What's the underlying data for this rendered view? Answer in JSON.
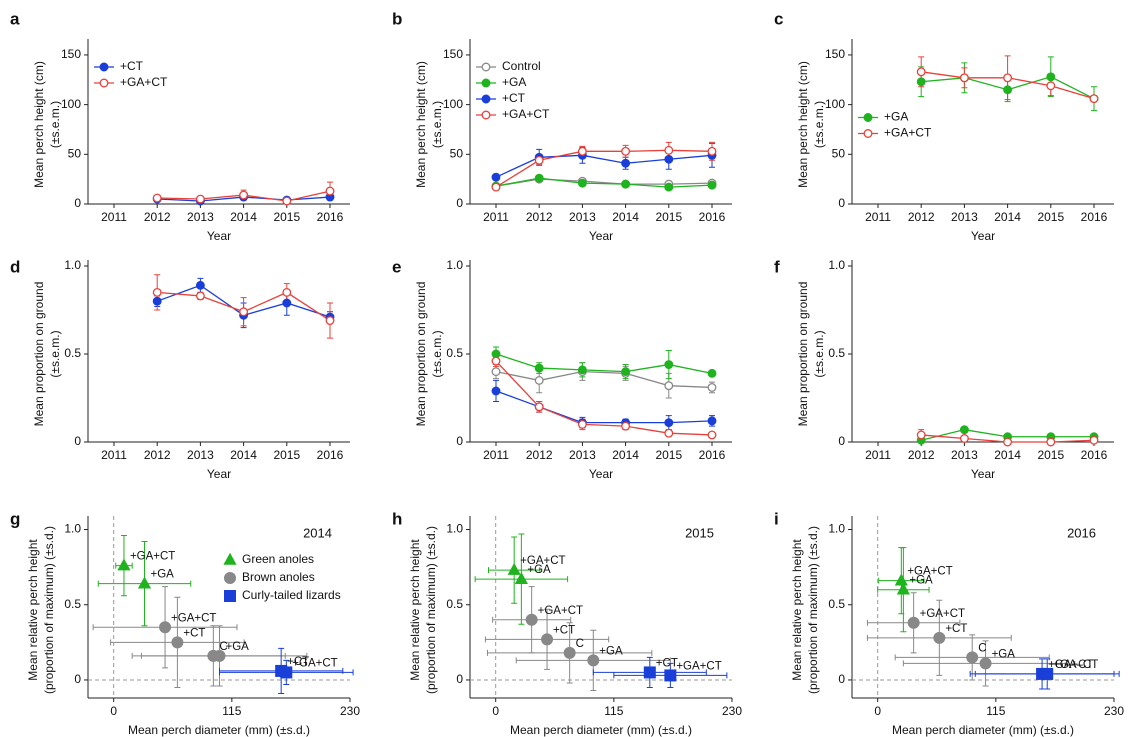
{
  "chart_data": [
    {
      "type": "line",
      "panel": "a",
      "xlabel": "Year",
      "ylabel": [
        "Mean perch height (cm)",
        "(±s.e.m.)"
      ],
      "categories": [
        "2011",
        "2012",
        "2013",
        "2014",
        "2015",
        "2016"
      ],
      "ylim": [
        0,
        160
      ],
      "yticks": [
        0,
        50,
        100,
        150
      ],
      "legend": "upper left",
      "series": [
        {
          "name": "+CT",
          "color": "#1a3fd8",
          "marker": "filled",
          "values": [
            null,
            5,
            3,
            7,
            4,
            7
          ],
          "errors": [
            null,
            2,
            1,
            2,
            1,
            2
          ]
        },
        {
          "name": "+GA+CT",
          "color": "#e8403a",
          "marker": "open",
          "values": [
            null,
            6,
            5,
            9,
            3,
            13
          ],
          "errors": [
            null,
            1,
            2,
            5,
            2,
            9
          ]
        }
      ]
    },
    {
      "type": "line",
      "panel": "b",
      "xlabel": "Year",
      "ylabel": [
        "Mean perch height (cm)",
        "(±s.e.m.)"
      ],
      "categories": [
        "2011",
        "2012",
        "2013",
        "2014",
        "2015",
        "2016"
      ],
      "ylim": [
        0,
        160
      ],
      "yticks": [
        0,
        50,
        100,
        150
      ],
      "legend": "upper left",
      "series": [
        {
          "name": "Control",
          "color": "#888888",
          "marker": "open",
          "values": [
            18,
            25,
            23,
            20,
            20,
            21
          ],
          "errors": [
            2,
            2,
            2,
            2,
            3,
            2
          ]
        },
        {
          "name": "+GA",
          "color": "#1fb31f",
          "marker": "filled",
          "values": [
            18,
            26,
            21,
            20,
            17,
            19
          ],
          "errors": [
            2,
            2,
            2,
            2,
            2,
            2
          ]
        },
        {
          "name": "+CT",
          "color": "#1a3fd8",
          "marker": "filled",
          "values": [
            27,
            47,
            49,
            41,
            45,
            49
          ],
          "errors": [
            3,
            8,
            8,
            6,
            10,
            12
          ]
        },
        {
          "name": "+GA+CT",
          "color": "#e8403a",
          "marker": "open",
          "values": [
            17,
            44,
            53,
            53,
            54,
            53
          ],
          "errors": [
            2,
            4,
            5,
            6,
            8,
            9
          ]
        }
      ]
    },
    {
      "type": "line",
      "panel": "c",
      "xlabel": "Year",
      "ylabel": [
        "Mean perch height (cm)",
        "(±s.e.m.)"
      ],
      "categories": [
        "2011",
        "2012",
        "2013",
        "2014",
        "2015",
        "2016"
      ],
      "ylim": [
        0,
        160
      ],
      "yticks": [
        0,
        50,
        100,
        150
      ],
      "legend": "center left",
      "series": [
        {
          "name": "+GA",
          "color": "#1fb31f",
          "marker": "filled",
          "values": [
            null,
            123,
            127,
            115,
            128,
            106
          ],
          "errors": [
            null,
            15,
            15,
            12,
            20,
            12
          ]
        },
        {
          "name": "+GA+CT",
          "color": "#e8403a",
          "marker": "open",
          "values": [
            null,
            133,
            127,
            127,
            119,
            106
          ],
          "errors": [
            null,
            15,
            10,
            22,
            10,
            3
          ]
        }
      ]
    },
    {
      "type": "line",
      "panel": "d",
      "xlabel": "Year",
      "ylabel": [
        "Mean proportion on ground",
        "(±s.e.m.)"
      ],
      "categories": [
        "2011",
        "2012",
        "2013",
        "2014",
        "2015",
        "2016"
      ],
      "ylim": [
        0,
        1
      ],
      "yticks": [
        0,
        0.5,
        {
          "value": 1,
          "label": "1.0"
        }
      ],
      "series": [
        {
          "name": "+CT",
          "color": "#1a3fd8",
          "marker": "filled",
          "values": [
            null,
            0.8,
            0.89,
            0.72,
            0.79,
            0.71
          ],
          "errors": [
            null,
            0.03,
            0.04,
            0.07,
            0.07,
            0.03
          ]
        },
        {
          "name": "+GA+CT",
          "color": "#e8403a",
          "marker": "open",
          "values": [
            null,
            0.85,
            0.83,
            0.74,
            0.85,
            0.69
          ],
          "errors": [
            null,
            0.1,
            0.02,
            0.08,
            0.05,
            0.1
          ]
        }
      ]
    },
    {
      "type": "line",
      "panel": "e",
      "xlabel": "Year",
      "ylabel": [
        "Mean proportion on ground",
        "(±s.e.m.)"
      ],
      "categories": [
        "2011",
        "2012",
        "2013",
        "2014",
        "2015",
        "2016"
      ],
      "ylim": [
        0,
        1
      ],
      "yticks": [
        0,
        0.5,
        {
          "value": 1,
          "label": "1.0"
        }
      ],
      "series": [
        {
          "name": "Control",
          "color": "#888888",
          "marker": "open",
          "values": [
            0.4,
            0.35,
            0.4,
            0.39,
            0.32,
            0.31
          ],
          "errors": [
            0.04,
            0.07,
            0.05,
            0.04,
            0.07,
            0.03
          ]
        },
        {
          "name": "+GA",
          "color": "#1fb31f",
          "marker": "filled",
          "values": [
            0.5,
            0.42,
            0.41,
            0.4,
            0.44,
            0.39
          ],
          "errors": [
            0.04,
            0.03,
            0.04,
            0.04,
            0.08,
            0.01
          ]
        },
        {
          "name": "+CT",
          "color": "#1a3fd8",
          "marker": "filled",
          "values": [
            0.29,
            0.2,
            0.11,
            0.11,
            0.11,
            0.12
          ],
          "errors": [
            0.06,
            0.03,
            0.03,
            0.02,
            0.04,
            0.03
          ]
        },
        {
          "name": "+GA+CT",
          "color": "#e8403a",
          "marker": "open",
          "values": [
            0.46,
            0.2,
            0.1,
            0.09,
            0.05,
            0.04
          ],
          "errors": [
            0.03,
            0.03,
            0.03,
            0.02,
            0.01,
            0.01
          ]
        }
      ]
    },
    {
      "type": "line",
      "panel": "f",
      "xlabel": "Year",
      "ylabel": [
        "Mean proportion on ground",
        "(±s.e.m.)"
      ],
      "categories": [
        "2011",
        "2012",
        "2013",
        "2014",
        "2015",
        "2016"
      ],
      "ylim": [
        0,
        1
      ],
      "yticks": [
        0,
        0.5,
        {
          "value": 1,
          "label": "1.0"
        }
      ],
      "series": [
        {
          "name": "+GA",
          "color": "#1fb31f",
          "marker": "filled",
          "values": [
            null,
            0.01,
            0.07,
            0.03,
            0.03,
            0.03
          ],
          "errors": [
            null,
            0.01,
            0.01,
            0.01,
            0.01,
            0.01
          ]
        },
        {
          "name": "+GA+CT",
          "color": "#e8403a",
          "marker": "open",
          "values": [
            null,
            0.04,
            0.02,
            0,
            0,
            0.01
          ],
          "errors": [
            null,
            0.03,
            0.01,
            0.01,
            0.01,
            0.01
          ]
        }
      ]
    },
    {
      "type": "scatter",
      "panel": "g",
      "annotation": "2014",
      "xlabel": "Mean perch diameter (mm) (±s.d.)",
      "ylabel": [
        "Mean relative perch height",
        "(proportion of maximum) (±s.d.)"
      ],
      "xlim": [
        -25,
        230
      ],
      "xticks": [
        0,
        115,
        230
      ],
      "ylim": [
        -0.12,
        1.05
      ],
      "yticks": [
        0,
        0.5,
        {
          "value": 1,
          "label": "1.0"
        }
      ],
      "legend": "upper right",
      "series": [
        {
          "name": "Green anoles",
          "color": "#1fb31f",
          "marker": "triangle",
          "points": [
            {
              "label": "+GA+CT",
              "label_color": "#e8403a",
              "x": 10,
              "y": 0.76,
              "xerr": 8,
              "yerr": 0.2
            },
            {
              "label": "+GA",
              "label_color": "#1fb31f",
              "x": 30,
              "y": 0.64,
              "xerr": 45,
              "yerr": 0.28
            }
          ]
        },
        {
          "name": "Brown anoles",
          "color": "#888888",
          "marker": "circle",
          "points": [
            {
              "label": "+GA+CT",
              "label_color": "#e8403a",
              "x": 50,
              "y": 0.35,
              "xerr": 70,
              "yerr": 0.27
            },
            {
              "label": "+CT",
              "label_color": "#1a3fd8",
              "x": 62,
              "y": 0.25,
              "xerr": 65,
              "yerr": 0.3
            },
            {
              "label": "C",
              "label_color": "#888888",
              "x": 97,
              "y": 0.16,
              "xerr": 70,
              "yerr": 0.2
            },
            {
              "label": "+GA",
              "label_color": "#1fb31f",
              "x": 103,
              "y": 0.16,
              "xerr": 85,
              "yerr": 0.2
            }
          ]
        },
        {
          "name": "Curly-tailed lizards",
          "color": "#1a3fd8",
          "marker": "square",
          "points": [
            {
              "label": "+CT",
              "label_color": "#1a3fd8",
              "x": 163,
              "y": 0.06,
              "xerr": 60,
              "yerr": 0.15
            },
            {
              "label": "+GA+CT",
              "label_color": "#e8403a",
              "x": 168,
              "y": 0.05,
              "xerr": 65,
              "yerr": 0.08
            }
          ]
        }
      ]
    },
    {
      "type": "scatter",
      "panel": "h",
      "annotation": "2015",
      "xlabel": "Mean perch diameter (mm) (±s.d.)",
      "ylabel": [
        "Mean relative perch height",
        "(proportion of maximum) (±s.d.)"
      ],
      "xlim": [
        -25,
        230
      ],
      "xticks": [
        0,
        115,
        230
      ],
      "ylim": [
        -0.12,
        1.05
      ],
      "yticks": [
        0,
        0.5,
        {
          "value": 1,
          "label": "1.0"
        }
      ],
      "series": [
        {
          "name": "Green anoles",
          "color": "#1fb31f",
          "marker": "triangle",
          "points": [
            {
              "label": "+GA+CT",
              "label_color": "#e8403a",
              "x": 18,
              "y": 0.73,
              "xerr": 25,
              "yerr": 0.22
            },
            {
              "label": "+GA",
              "label_color": "#1fb31f",
              "x": 25,
              "y": 0.67,
              "xerr": 45,
              "yerr": 0.3
            }
          ]
        },
        {
          "name": "Brown anoles",
          "color": "#888888",
          "marker": "circle",
          "points": [
            {
              "label": "+GA+CT",
              "label_color": "#e8403a",
              "x": 35,
              "y": 0.4,
              "xerr": 38,
              "yerr": 0.22
            },
            {
              "label": "+CT",
              "label_color": "#1a3fd8",
              "x": 50,
              "y": 0.27,
              "xerr": 60,
              "yerr": 0.2
            },
            {
              "label": "C",
              "label_color": "#888888",
              "x": 72,
              "y": 0.18,
              "xerr": 80,
              "yerr": 0.2
            },
            {
              "label": "+GA",
              "label_color": "#1fb31f",
              "x": 95,
              "y": 0.13,
              "xerr": 75,
              "yerr": 0.2
            }
          ]
        },
        {
          "name": "Curly-tailed lizards",
          "color": "#1a3fd8",
          "marker": "square",
          "points": [
            {
              "label": "+CT",
              "label_color": "#1a3fd8",
              "x": 150,
              "y": 0.05,
              "xerr": 55,
              "yerr": 0.1
            },
            {
              "label": "+GA+CT",
              "label_color": "#e8403a",
              "x": 170,
              "y": 0.03,
              "xerr": 55,
              "yerr": 0.08
            }
          ]
        }
      ]
    },
    {
      "type": "scatter",
      "panel": "i",
      "annotation": "2016",
      "xlabel": "Mean perch diameter (mm) (±s.d.)",
      "ylabel": [
        "Mean relative perch height",
        "(proportion of maximum) (±s.d.)"
      ],
      "xlim": [
        -25,
        230
      ],
      "xticks": [
        0,
        115,
        230
      ],
      "ylim": [
        -0.12,
        1.05
      ],
      "yticks": [
        0,
        0.5,
        {
          "value": 1,
          "label": "1.0"
        }
      ],
      "series": [
        {
          "name": "Green anoles",
          "color": "#1fb31f",
          "marker": "triangle",
          "points": [
            {
              "label": "+GA+CT",
              "label_color": "#e8403a",
              "x": 23,
              "y": 0.66,
              "xerr": 22,
              "yerr": 0.22
            },
            {
              "label": "+GA",
              "label_color": "#1fb31f",
              "x": 25,
              "y": 0.6,
              "xerr": 25,
              "yerr": 0.28
            }
          ]
        },
        {
          "name": "Brown anoles",
          "color": "#888888",
          "marker": "circle",
          "points": [
            {
              "label": "+GA+CT",
              "label_color": "#e8403a",
              "x": 35,
              "y": 0.38,
              "xerr": 45,
              "yerr": 0.2
            },
            {
              "label": "+CT",
              "label_color": "#1a3fd8",
              "x": 60,
              "y": 0.28,
              "xerr": 70,
              "yerr": 0.25
            },
            {
              "label": "C",
              "label_color": "#888888",
              "x": 92,
              "y": 0.15,
              "xerr": 75,
              "yerr": 0.15
            },
            {
              "label": "+GA",
              "label_color": "#1fb31f",
              "x": 105,
              "y": 0.11,
              "xerr": 80,
              "yerr": 0.15
            }
          ]
        },
        {
          "name": "Curly-tailed lizards",
          "color": "#1a3fd8",
          "marker": "square",
          "points": [
            {
              "label": "+GA+CT",
              "label_color": "#1fb31f",
              "x": 160,
              "y": 0.04,
              "xerr": 70,
              "yerr": 0.1
            },
            {
              "label": "+GA–CT",
              "label_color": "#e8403a",
              "x": 165,
              "y": 0.04,
              "xerr": 70,
              "yerr": 0.1
            }
          ]
        }
      ]
    }
  ]
}
